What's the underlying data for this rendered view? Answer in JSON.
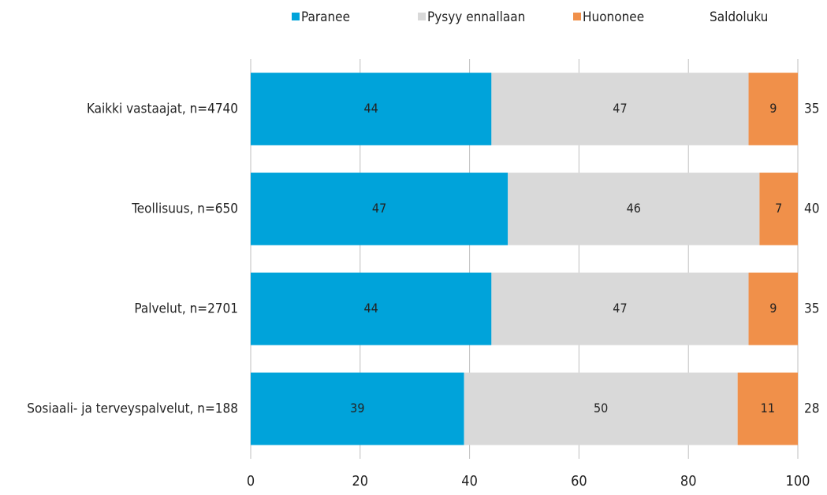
{
  "chart_data": {
    "type": "stacked-bar-horizontal",
    "categories": [
      "Kaikki vastaajat, n=4740",
      "Teollisuus, n=650",
      "Palvelut, n=2701",
      "Sosiaali- ja terveyspalvelut, n=188"
    ],
    "series": [
      {
        "name": "Paranee",
        "color": "#00a3da",
        "values": [
          44,
          47,
          44,
          39
        ]
      },
      {
        "name": "Pysyy ennallaan",
        "color": "#d9d9d9",
        "values": [
          47,
          46,
          47,
          50
        ]
      },
      {
        "name": "Huononee",
        "color": "#f0904a",
        "values": [
          9,
          7,
          9,
          11
        ]
      }
    ],
    "balance": {
      "name": "Saldoluku",
      "values": [
        35,
        40,
        35,
        28
      ]
    },
    "xlim": [
      0,
      100
    ],
    "xticks": [
      0,
      20,
      40,
      60,
      80,
      100
    ],
    "grid": true,
    "legend": "top"
  }
}
